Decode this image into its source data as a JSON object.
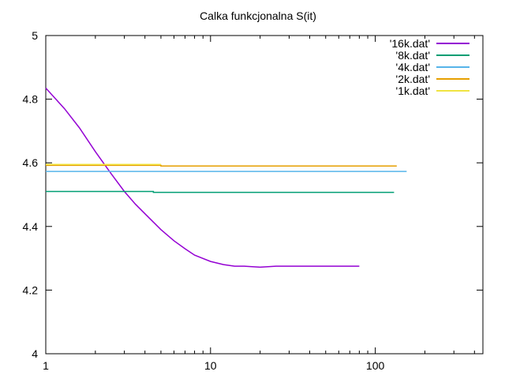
{
  "chart_data": {
    "type": "line",
    "title": "Calka funkcjonalna S(it)",
    "xlabel": "",
    "ylabel": "",
    "x_scale": "log",
    "xlim": [
      1,
      450
    ],
    "ylim": [
      4.0,
      5.0
    ],
    "grid": false,
    "legend_position": "top-right",
    "x_ticks": [
      {
        "value": 1,
        "label": "1"
      },
      {
        "value": 10,
        "label": "10"
      },
      {
        "value": 100,
        "label": "100"
      }
    ],
    "y_ticks": [
      {
        "value": 4.0,
        "label": "4"
      },
      {
        "value": 4.2,
        "label": "4.2"
      },
      {
        "value": 4.4,
        "label": "4.4"
      },
      {
        "value": 4.6,
        "label": "4.6"
      },
      {
        "value": 4.8,
        "label": "4.8"
      },
      {
        "value": 5.0,
        "label": "5"
      }
    ],
    "series": [
      {
        "name": "'16k.dat'",
        "color": "#9400d3",
        "x": [
          1,
          1.3,
          1.6,
          2,
          2.5,
          3,
          3.5,
          4,
          5,
          6,
          7,
          8,
          10,
          12,
          14,
          16,
          20,
          25,
          30,
          40,
          50,
          60,
          70,
          80
        ],
        "y": [
          4.835,
          4.77,
          4.71,
          4.635,
          4.565,
          4.51,
          4.47,
          4.44,
          4.39,
          4.355,
          4.33,
          4.31,
          4.29,
          4.28,
          4.275,
          4.275,
          4.272,
          4.275,
          4.275,
          4.275,
          4.275,
          4.275,
          4.275,
          4.275
        ]
      },
      {
        "name": "'8k.dat'",
        "color": "#009e73",
        "x": [
          1,
          4.5,
          4.5,
          130
        ],
        "y": [
          4.51,
          4.51,
          4.507,
          4.507
        ]
      },
      {
        "name": "'4k.dat'",
        "color": "#56b4e9",
        "x": [
          1,
          155
        ],
        "y": [
          4.573,
          4.573
        ]
      },
      {
        "name": "'2k.dat'",
        "color": "#e69f00",
        "x": [
          1,
          5,
          5,
          135
        ],
        "y": [
          4.592,
          4.592,
          4.59,
          4.59
        ]
      },
      {
        "name": "'1k.dat'",
        "color": "#f0e442",
        "x": [
          1,
          5
        ],
        "y": [
          4.595,
          4.595
        ]
      }
    ]
  }
}
